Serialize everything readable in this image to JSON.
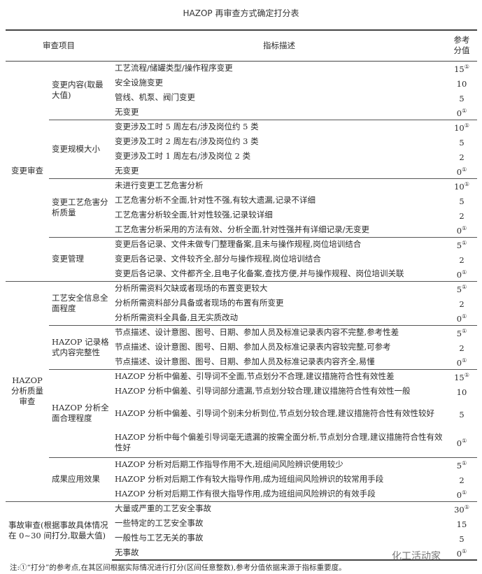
{
  "title": "HAZOP 再审查方式确定打分表",
  "header": {
    "col_item": "审查项目",
    "col_desc": "指标描述",
    "col_score": "参考分值"
  },
  "groups": [
    {
      "label": "变更审查",
      "subgroups": [
        {
          "label": "变更内容(取最大值)",
          "items": [
            {
              "text": "工艺流程/储罐类型/操作程序变更",
              "score": "15",
              "note": "①"
            },
            {
              "text": "安全设施变更",
              "score": "10",
              "note": ""
            },
            {
              "text": "管线、机泵、阀门变更",
              "score": "5",
              "note": ""
            },
            {
              "text": "无变更",
              "score": "0",
              "note": "①"
            }
          ]
        },
        {
          "label": "变更规模大小",
          "items": [
            {
              "text": "变更涉及工时 5 周左右/涉及岗位约 5 类",
              "score": "10",
              "note": "①"
            },
            {
              "text": "变更涉及工时 2 周左右/涉及岗位约 3 类",
              "score": "5",
              "note": ""
            },
            {
              "text": "变更涉及工时 1 周左右/涉及岗位 2 类",
              "score": "2",
              "note": ""
            },
            {
              "text": "无变更",
              "score": "0",
              "note": "①"
            }
          ]
        },
        {
          "label": "变更工艺危害分析质量",
          "items": [
            {
              "text": "未进行变更工艺危害分析",
              "score": "10",
              "note": "①"
            },
            {
              "text": "工艺危害分析不全面,针对性不强,有较大遗漏,记录不详细",
              "score": "5",
              "note": ""
            },
            {
              "text": "工艺危害分析较全面,针对性较强,记录较详细",
              "score": "2",
              "note": ""
            },
            {
              "text": "工艺危害分析采用的方法有效、分析全面,针对性强并有详细记录/无变更",
              "score": "0",
              "note": "①"
            }
          ]
        },
        {
          "label": "变更管理",
          "items": [
            {
              "text": "变更后各记录、文件未做专门整理备案,且未与操作规程,岗位培训结合",
              "score": "5",
              "note": "①"
            },
            {
              "text": "变更后各记录、文件较齐全,部分与操作规程,岗位培训结合",
              "score": "2",
              "note": ""
            },
            {
              "text": "变更后各记录、文件都齐全,且电子化备案,查找方便,并与操作规程、岗位培训关联",
              "score": "0",
              "note": "①"
            }
          ]
        }
      ]
    },
    {
      "label": "HAZOP分析质量审查",
      "subgroups": [
        {
          "label": "工艺安全信息全面程度",
          "items": [
            {
              "text": "分析所需资料欠缺或者现场的布置变更较大",
              "score": "5",
              "note": "①"
            },
            {
              "text": "分析所需资料部分具备或者现场的布置有所变更",
              "score": "2",
              "note": ""
            },
            {
              "text": "分析所需资料全具备,且无实质改动",
              "score": "0",
              "note": "①"
            }
          ]
        },
        {
          "label": "HAZOP 记录格式内容完整性",
          "items": [
            {
              "text": "节点描述、设计意图、图号、日期、参加人员及标准记录表内容不完整,参考性差",
              "score": "5",
              "note": "①"
            },
            {
              "text": "节点描述、设计意图、图号、日期、参加人员及标准记录表内容较完整,可参考",
              "score": "2",
              "note": ""
            },
            {
              "text": "节点描述、设计意图、图号、日期、参加人员及标准记录表内容齐全,易懂",
              "score": "0",
              "note": "①"
            }
          ]
        },
        {
          "label": "HAZOP 分析全面合理程度",
          "items": [
            {
              "text": "HAZOP 分析中偏差、引导词不全面,节点划分不合理,建议措施符合性有效性差",
              "score": "15",
              "note": "①"
            },
            {
              "text": "HAZOP 分析中偏差、引导词部分遗漏,节点划分较合理,建议措施符合性有效性一般",
              "score": "10",
              "note": ""
            },
            {
              "text": "HAZOP 分析中偏差、引导词个别未分析到位,节点划分较合理,建议措施符合性有效性较好",
              "score": "5",
              "note": "",
              "tall": true
            },
            {
              "text": "HAZOP 分析中每个偏差引导词毫无遗漏的按需全面分析,节点划分合理,建议措施符合性有效性好",
              "score": "0",
              "note": "①",
              "tall": true
            }
          ]
        },
        {
          "label": "成果应用效果",
          "items": [
            {
              "text": "HAZOP 分析对后期工作指导作用不大,班组间风险辨识使用较少",
              "score": "5",
              "note": "①"
            },
            {
              "text": "HAZOP 分析对后期工作有较大指导作用,成为班组间风险辨识的较常用手段",
              "score": "2",
              "note": ""
            },
            {
              "text": "HAZOP 分析对后期工作有很大指导作用,成为班组间风险辨识的有效手段",
              "score": "0",
              "note": "①"
            }
          ]
        }
      ]
    },
    {
      "label": "事故审查(根据事故具体情况在 0~30 间打分,取最大值)",
      "merged": true,
      "subgroups": [
        {
          "label": "",
          "items": [
            {
              "text": "大量或严重的工艺安全事故",
              "score": "30",
              "note": "①"
            },
            {
              "text": "一些特定的工艺安全事故",
              "score": "15",
              "note": ""
            },
            {
              "text": "一般性与工艺无关的事故",
              "score": "5",
              "note": ""
            },
            {
              "text": "无事故",
              "score": "0",
              "note": "①"
            }
          ]
        }
      ]
    }
  ],
  "footnote": "注:①“打分”的参考点,在其区间根据实际情况进行打分(区间任意整数),参考分值依据来源于指标重要度。",
  "watermark": "化工活动家"
}
